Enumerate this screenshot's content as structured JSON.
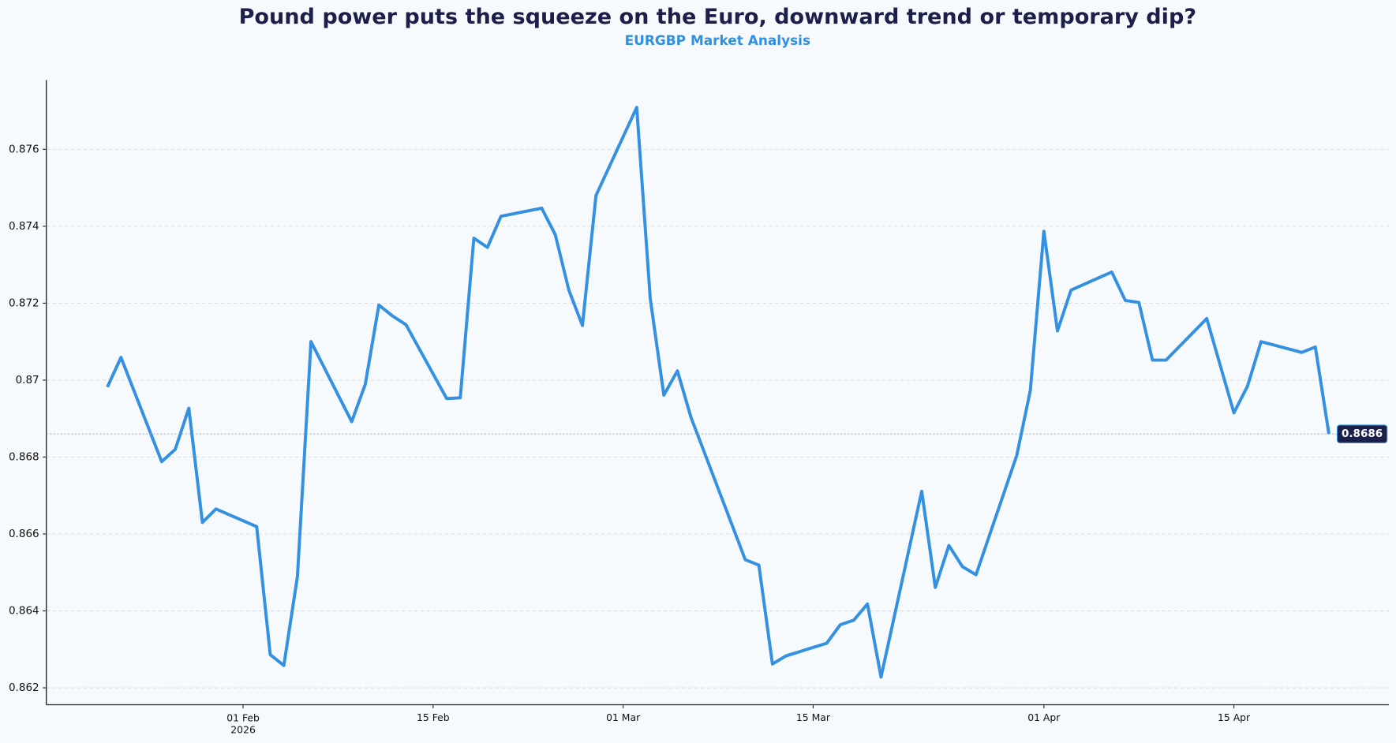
{
  "chart_data": {
    "type": "line",
    "title": "Pound power puts the squeeze on the Euro, downward trend or temporary dip?",
    "subtitle": "EURGBP Market Analysis",
    "color": "#3490e0",
    "x": [
      "2026-01-22",
      "2026-01-23",
      "2026-01-26",
      "2026-01-27",
      "2026-01-28",
      "2026-01-29",
      "2026-01-30",
      "2026-02-02",
      "2026-02-03",
      "2026-02-04",
      "2026-02-05",
      "2026-02-06",
      "2026-02-09",
      "2026-02-10",
      "2026-02-11",
      "2026-02-12",
      "2026-02-13",
      "2026-02-16",
      "2026-02-17",
      "2026-02-18",
      "2026-02-19",
      "2026-02-20",
      "2026-02-23",
      "2026-02-24",
      "2026-02-25",
      "2026-02-26",
      "2026-02-27",
      "2026-03-02",
      "2026-03-03",
      "2026-03-04",
      "2026-03-05",
      "2026-03-06",
      "2026-03-10",
      "2026-03-11",
      "2026-03-12",
      "2026-03-13",
      "2026-03-16",
      "2026-03-17",
      "2026-03-18",
      "2026-03-19",
      "2026-03-20",
      "2026-03-23",
      "2026-03-24",
      "2026-03-25",
      "2026-03-26",
      "2026-03-27",
      "2026-03-30",
      "2026-03-31",
      "2026-04-01",
      "2026-04-02",
      "2026-04-03",
      "2026-04-06",
      "2026-04-07",
      "2026-04-08",
      "2026-04-09",
      "2026-04-10",
      "2026-04-13",
      "2026-04-15",
      "2026-04-16",
      "2026-04-17",
      "2026-04-20",
      "2026-04-21",
      "2026-04-22"
    ],
    "values": [
      0.86982,
      0.87059,
      0.86788,
      0.8682,
      0.86927,
      0.8663,
      0.86665,
      0.86619,
      0.86286,
      0.86258,
      0.86489,
      0.871,
      0.86892,
      0.86989,
      0.87195,
      0.87167,
      0.87144,
      0.86952,
      0.86954,
      0.87369,
      0.87345,
      0.87426,
      0.87447,
      0.87378,
      0.87234,
      0.87142,
      0.8748,
      0.87709,
      0.87211,
      0.86961,
      0.87024,
      0.86903,
      0.86533,
      0.86519,
      0.86262,
      0.86283,
      0.86316,
      0.86364,
      0.86376,
      0.86418,
      0.86228,
      0.86711,
      0.86461,
      0.8657,
      0.86515,
      0.86494,
      0.86804,
      0.86973,
      0.87387,
      0.87128,
      0.87234,
      0.87281,
      0.87207,
      0.87202,
      0.87052,
      0.87052,
      0.8716,
      0.86915,
      0.86984,
      0.871,
      0.87072,
      0.87086,
      0.8686
    ],
    "xlim": [
      "2026-01-17T12:00",
      "2026-04-26T10:00"
    ],
    "xticks": [
      {
        "value": "2026-02-01",
        "label": "01 Feb\n2026"
      },
      {
        "value": "2026-02-15",
        "label": "15 Feb"
      },
      {
        "value": "2026-03-01",
        "label": "01 Mar"
      },
      {
        "value": "2026-03-15",
        "label": "15 Mar"
      },
      {
        "value": "2026-04-01",
        "label": "01 Apr"
      },
      {
        "value": "2026-04-15",
        "label": "15 Apr"
      }
    ],
    "ylim": [
      0.86156,
      0.8778
    ],
    "yticks": [
      0.862,
      0.864,
      0.866,
      0.868,
      0.87,
      0.872,
      0.874,
      0.876
    ],
    "grid": true
  }
}
